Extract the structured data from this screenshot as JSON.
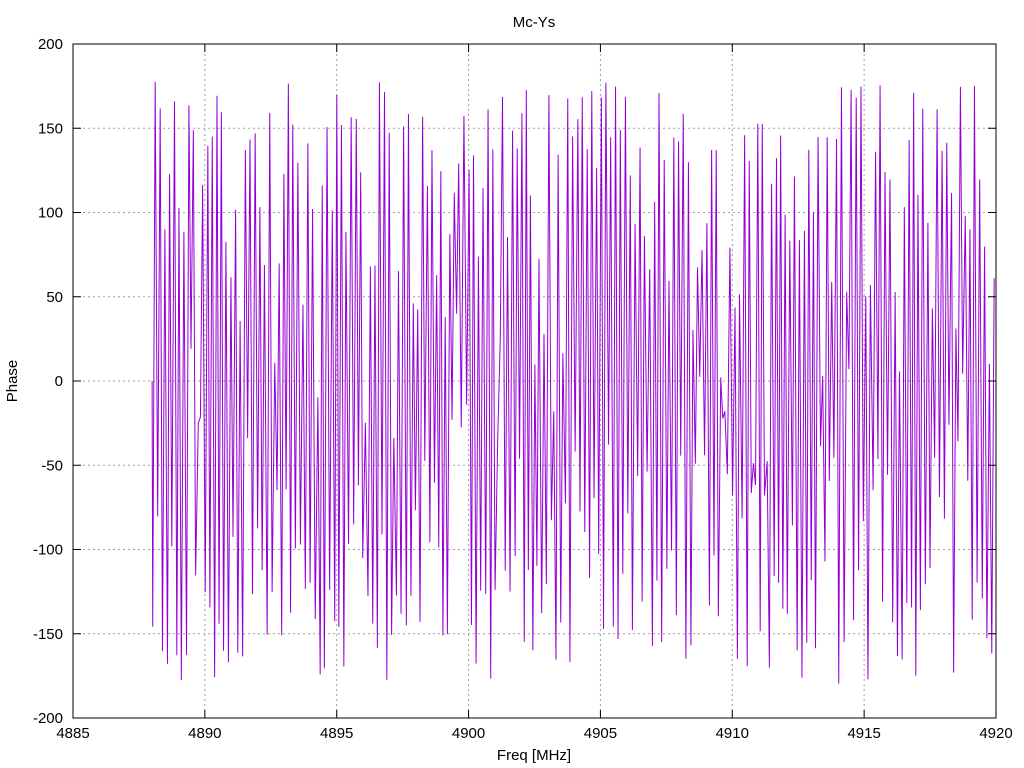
{
  "chart_data": {
    "type": "line",
    "title": "Mc-Ys",
    "xlabel": "Freq [MHz]",
    "ylabel": "Phase",
    "xlim": [
      4885,
      4920
    ],
    "ylim": [
      -200,
      200
    ],
    "x_ticks": [
      4885,
      4890,
      4895,
      4900,
      4905,
      4910,
      4915,
      4920
    ],
    "y_ticks": [
      -200,
      -150,
      -100,
      -50,
      0,
      50,
      100,
      150,
      200
    ],
    "grid": true,
    "legend": "none",
    "series": [
      {
        "color": "#9400d3",
        "x_start": 4888.0,
        "x_end": 4920.0,
        "period_mhz": 0.18,
        "y_first": 0,
        "y_max_visible": 178,
        "y_min_visible": -180
      }
    ]
  }
}
